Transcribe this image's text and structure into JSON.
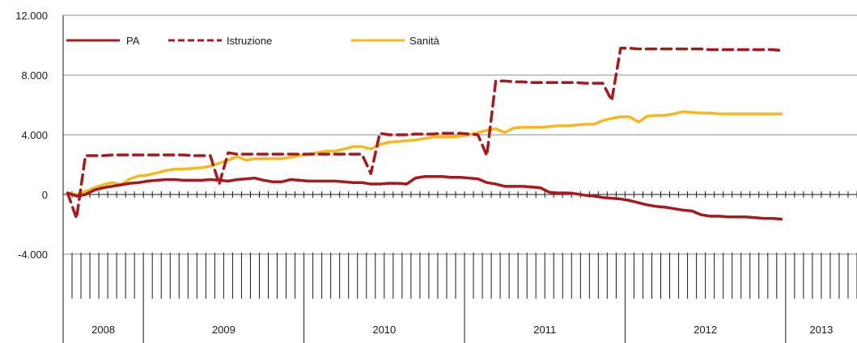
{
  "chart_data": {
    "type": "line",
    "title": "",
    "xlabel": "",
    "ylabel": "",
    "ylim": [
      -4000,
      12000
    ],
    "yticks": [
      -4000,
      0,
      4000,
      8000,
      12000
    ],
    "ytick_labels": [
      "-4.000",
      "0",
      "4.000",
      "8.000",
      "12.000"
    ],
    "grid": true,
    "legend_position": "top-left",
    "x_start": "2008-04",
    "years": [
      {
        "label": "2008",
        "months": 9
      },
      {
        "label": "2009",
        "months": 18
      },
      {
        "label": "2010",
        "months": 18
      },
      {
        "label": "2011",
        "months": 18
      },
      {
        "label": "2012",
        "months": 18
      },
      {
        "label": "2013",
        "months": 8
      }
    ],
    "series": [
      {
        "name": "PA",
        "color": "#a8191e",
        "dash": "solid",
        "values": [
          100,
          -100,
          0,
          300,
          450,
          550,
          650,
          750,
          800,
          900,
          950,
          1000,
          1000,
          950,
          950,
          950,
          1000,
          950,
          900,
          1000,
          1050,
          1100,
          950,
          850,
          850,
          1000,
          950,
          900,
          900,
          900,
          900,
          850,
          800,
          800,
          700,
          700,
          750,
          750,
          700,
          1100,
          1200,
          1200,
          1200,
          1150,
          1150,
          1100,
          1050,
          800,
          700,
          550,
          550,
          550,
          500,
          450,
          150,
          100,
          100,
          50,
          -50,
          -100,
          -200,
          -250,
          -300,
          -400,
          -550,
          -700,
          -800,
          -850,
          -950,
          -1050,
          -1100,
          -1350,
          -1450,
          -1450,
          -1500,
          -1500,
          -1500,
          -1550,
          -1600,
          -1600,
          -1650
        ]
      },
      {
        "name": "Istruzione",
        "color": "#a8191e",
        "dash": "dashed",
        "values": [
          100,
          -1600,
          2600,
          2600,
          2600,
          2650,
          2650,
          2650,
          2650,
          2650,
          2650,
          2650,
          2650,
          2650,
          2600,
          2600,
          2600,
          700,
          2800,
          2700,
          2700,
          2700,
          2700,
          2700,
          2700,
          2700,
          2700,
          2700,
          2700,
          2700,
          2700,
          2700,
          2700,
          2700,
          1400,
          4100,
          4000,
          4000,
          4000,
          4050,
          4050,
          4050,
          4100,
          4100,
          4100,
          4050,
          4000,
          2600,
          7600,
          7600,
          7550,
          7550,
          7500,
          7500,
          7500,
          7500,
          7500,
          7500,
          7450,
          7450,
          7450,
          6300,
          9800,
          9800,
          9750,
          9750,
          9750,
          9750,
          9750,
          9750,
          9750,
          9750,
          9700,
          9700,
          9700,
          9700,
          9700,
          9700,
          9700,
          9700,
          9650
        ]
      },
      {
        "name": "Sanità",
        "color": "#f5b820",
        "dash": "solid",
        "values": [
          100,
          0,
          200,
          450,
          650,
          800,
          650,
          1050,
          1250,
          1300,
          1450,
          1600,
          1700,
          1700,
          1750,
          1800,
          1900,
          2100,
          2300,
          2550,
          2300,
          2400,
          2400,
          2400,
          2400,
          2500,
          2600,
          2700,
          2800,
          2900,
          2900,
          3050,
          3200,
          3200,
          3050,
          3350,
          3500,
          3550,
          3600,
          3650,
          3750,
          3850,
          3850,
          3850,
          3900,
          4000,
          4150,
          4300,
          4400,
          4150,
          4450,
          4500,
          4500,
          4500,
          4550,
          4600,
          4600,
          4650,
          4700,
          4700,
          4950,
          5100,
          5200,
          5200,
          4850,
          5250,
          5300,
          5300,
          5400,
          5550,
          5500,
          5450,
          5450,
          5400,
          5400,
          5400,
          5400,
          5400,
          5400,
          5400,
          5400
        ]
      }
    ]
  }
}
